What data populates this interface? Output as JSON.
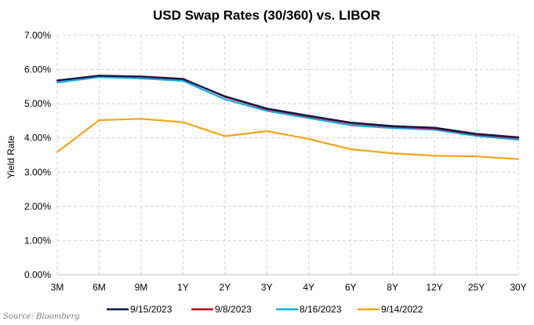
{
  "source_text": "Source: Bloomberg",
  "chart_data": {
    "type": "line",
    "title": "USD Swap Rates (30/360) vs. LIBOR",
    "xlabel": "",
    "ylabel": "Yield Rate",
    "ylim": [
      0,
      7
    ],
    "yticks": [
      "0.00%",
      "1.00%",
      "2.00%",
      "3.00%",
      "4.00%",
      "5.00%",
      "6.00%",
      "7.00%"
    ],
    "categories": [
      "3M",
      "6M",
      "9M",
      "1Y",
      "2Y",
      "3Y",
      "4Y",
      "6Y",
      "8Y",
      "12Y",
      "25Y",
      "30Y"
    ],
    "grid": true,
    "legend_position": "bottom",
    "series": [
      {
        "name": "9/15/2023",
        "color": "#0d1a4a",
        "values": [
          5.68,
          5.82,
          5.79,
          5.72,
          5.22,
          4.86,
          4.65,
          4.45,
          4.35,
          4.3,
          4.12,
          4.02
        ]
      },
      {
        "name": "9/8/2023",
        "color": "#c0001a",
        "values": [
          5.68,
          5.82,
          5.8,
          5.73,
          5.2,
          4.84,
          4.63,
          4.43,
          4.33,
          4.28,
          4.1,
          4.0
        ]
      },
      {
        "name": "8/16/2023",
        "color": "#17a9e1",
        "values": [
          5.62,
          5.78,
          5.74,
          5.67,
          5.13,
          4.79,
          4.58,
          4.37,
          4.29,
          4.24,
          4.06,
          3.95
        ]
      },
      {
        "name": "9/14/2022",
        "color": "#f5a31a",
        "values": [
          3.59,
          4.52,
          4.56,
          4.46,
          4.05,
          4.2,
          3.97,
          3.67,
          3.55,
          3.48,
          3.46,
          3.38
        ]
      }
    ]
  }
}
